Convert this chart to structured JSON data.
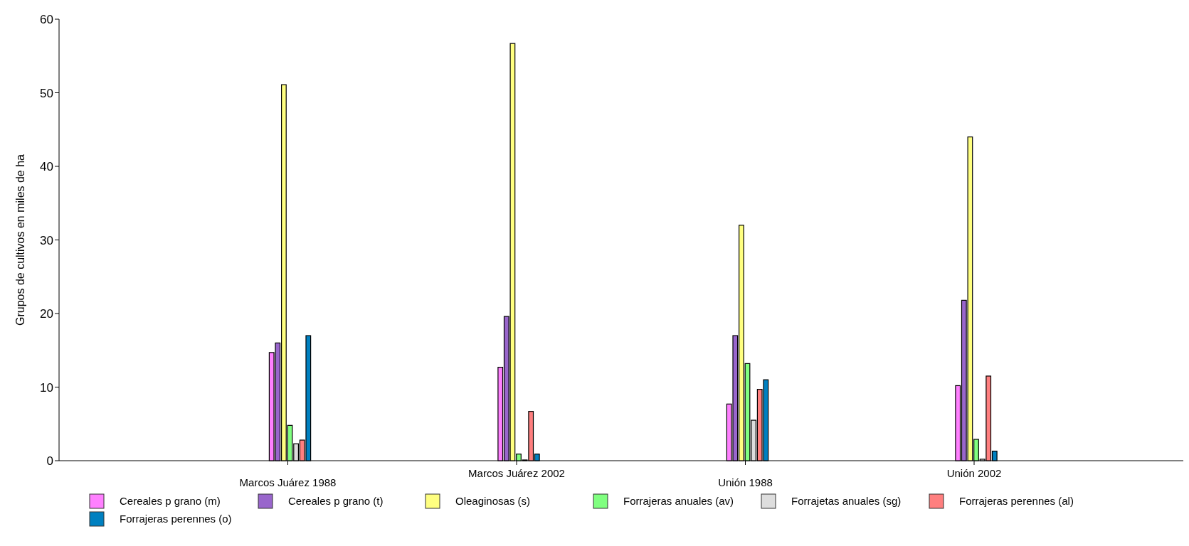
{
  "chart_data": {
    "type": "bar",
    "ylabel": "Grupos de cultivos en miles de ha",
    "categories": [
      "Marcos Juárez 1988",
      "Marcos Juárez 2002",
      "Unión 1988",
      "Unión 2002"
    ],
    "ylim": [
      0,
      60
    ],
    "yticks": [
      0,
      10,
      20,
      30,
      40,
      50,
      60
    ],
    "grid": false,
    "legend": "bottom",
    "series": [
      {
        "name": "Cereales p grano (m)",
        "color": "#ff80ff",
        "values": [
          14.7,
          12.7,
          7.7,
          10.2
        ]
      },
      {
        "name": "Cereales p grano (t)",
        "color": "#9966cc",
        "values": [
          16,
          19.6,
          17,
          21.8
        ]
      },
      {
        "name": "Oleaginosas (s)",
        "color": "#ffff80",
        "values": [
          51.1,
          56.7,
          32,
          44
        ]
      },
      {
        "name": "Forrajeras anuales (av)",
        "color": "#80ff80",
        "values": [
          4.8,
          0.9,
          13.2,
          2.9
        ]
      },
      {
        "name": "Forrajetas anuales (sg)",
        "color": "#dddddd",
        "values": [
          2.3,
          0.1,
          5.5,
          0.2
        ]
      },
      {
        "name": "Forrajeras perennes (al)",
        "color": "#ff7f7f",
        "values": [
          2.8,
          6.7,
          9.7,
          11.5
        ]
      },
      {
        "name": "Forrajeras perennes (o)",
        "color": "#0080c0",
        "values": [
          17,
          0.9,
          11,
          1.3
        ]
      }
    ]
  }
}
